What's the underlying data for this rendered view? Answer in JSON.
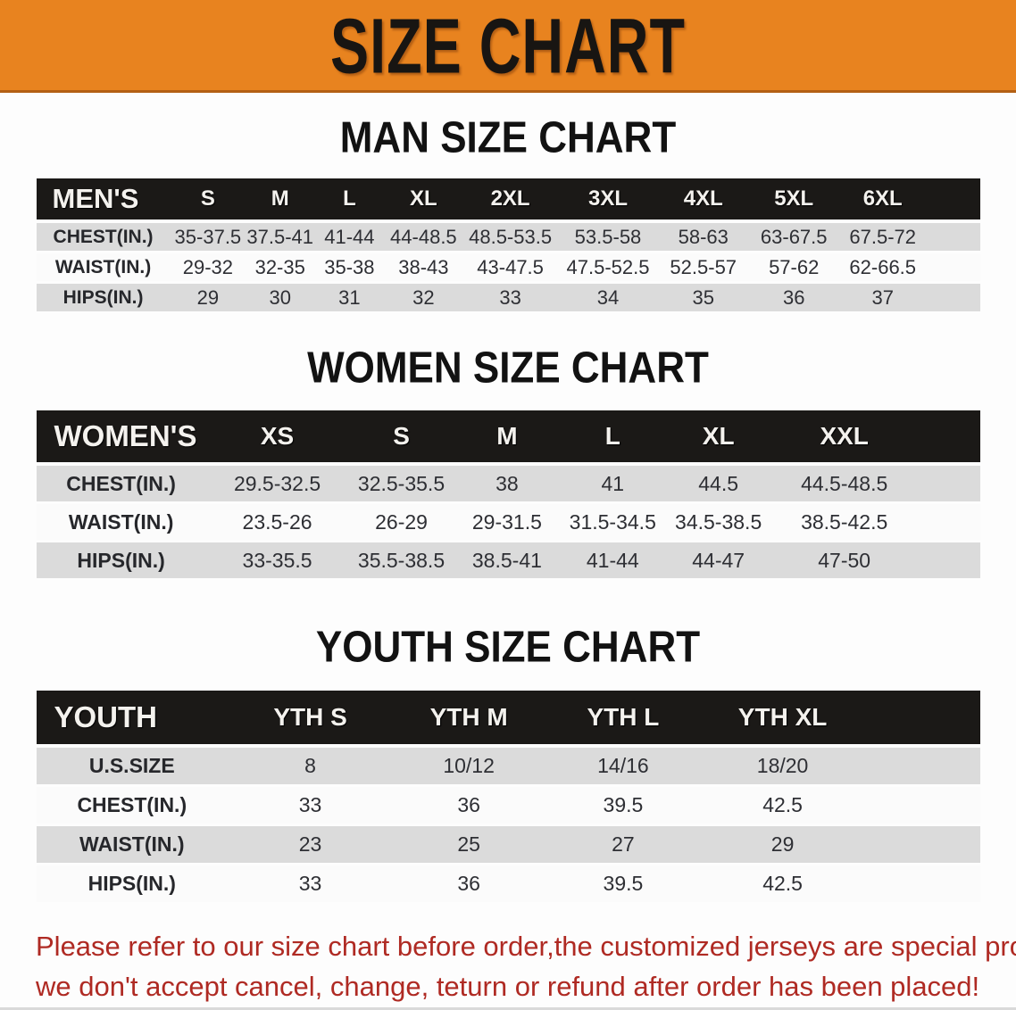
{
  "banner": {
    "title": "SIZE CHART"
  },
  "sections": [
    {
      "heading": "MAN SIZE CHART",
      "table": {
        "header_label": "MEN'S",
        "columns": [
          "S",
          "M",
          "L",
          "XL",
          "2XL",
          "3XL",
          "4XL",
          "5XL",
          "6XL"
        ],
        "rows": [
          {
            "label": "CHEST(IN.)",
            "values": [
              "35-37.5",
              "37.5-41",
              "41-44",
              "44-48.5",
              "48.5-53.5",
              "53.5-58",
              "58-63",
              "63-67.5",
              "67.5-72"
            ]
          },
          {
            "label": "WAIST(IN.)",
            "values": [
              "29-32",
              "32-35",
              "35-38",
              "38-43",
              "43-47.5",
              "47.5-52.5",
              "52.5-57",
              "57-62",
              "62-66.5"
            ]
          },
          {
            "label": "HIPS(IN.)",
            "values": [
              "29",
              "30",
              "31",
              "32",
              "33",
              "34",
              "35",
              "36",
              "37"
            ]
          }
        ]
      }
    },
    {
      "heading": "WOMEN SIZE CHART",
      "table": {
        "header_label": "WOMEN'S",
        "columns": [
          "XS",
          "S",
          "M",
          "L",
          "XL",
          "XXL"
        ],
        "rows": [
          {
            "label": "CHEST(IN.)",
            "values": [
              "29.5-32.5",
              "32.5-35.5",
              "38",
              "41",
              "44.5",
              "44.5-48.5"
            ]
          },
          {
            "label": "WAIST(IN.)",
            "values": [
              "23.5-26",
              "26-29",
              "29-31.5",
              "31.5-34.5",
              "34.5-38.5",
              "38.5-42.5"
            ]
          },
          {
            "label": "HIPS(IN.)",
            "values": [
              "33-35.5",
              "35.5-38.5",
              "38.5-41",
              "41-44",
              "44-47",
              "47-50"
            ]
          }
        ]
      }
    },
    {
      "heading": "YOUTH SIZE CHART",
      "table": {
        "header_label": "YOUTH",
        "columns": [
          "YTH S",
          "YTH M",
          "YTH L",
          "YTH XL"
        ],
        "rows": [
          {
            "label": "U.S.SIZE",
            "values": [
              "8",
              "10/12",
              "14/16",
              "18/20"
            ]
          },
          {
            "label": "CHEST(IN.)",
            "values": [
              "33",
              "36",
              "39.5",
              "42.5"
            ]
          },
          {
            "label": "WAIST(IN.)",
            "values": [
              "23",
              "25",
              "27",
              "29"
            ]
          },
          {
            "label": "HIPS(IN.)",
            "values": [
              "33",
              "36",
              "39.5",
              "42.5"
            ]
          }
        ]
      }
    }
  ],
  "footer_note": {
    "line1": "Please refer to our size chart before order,the customized jerseys are special products,",
    "line2": "we don't accept cancel, change, teturn or refund after order has been placed!"
  },
  "colors": {
    "banner_orange": "#E8831F",
    "banner_orange_dark_edge": "#B36014",
    "table_header_black": "#1B1917",
    "row_gray": "#DBDBDB",
    "row_white": "#FBFBFB",
    "note_red": "#AF2A23"
  }
}
